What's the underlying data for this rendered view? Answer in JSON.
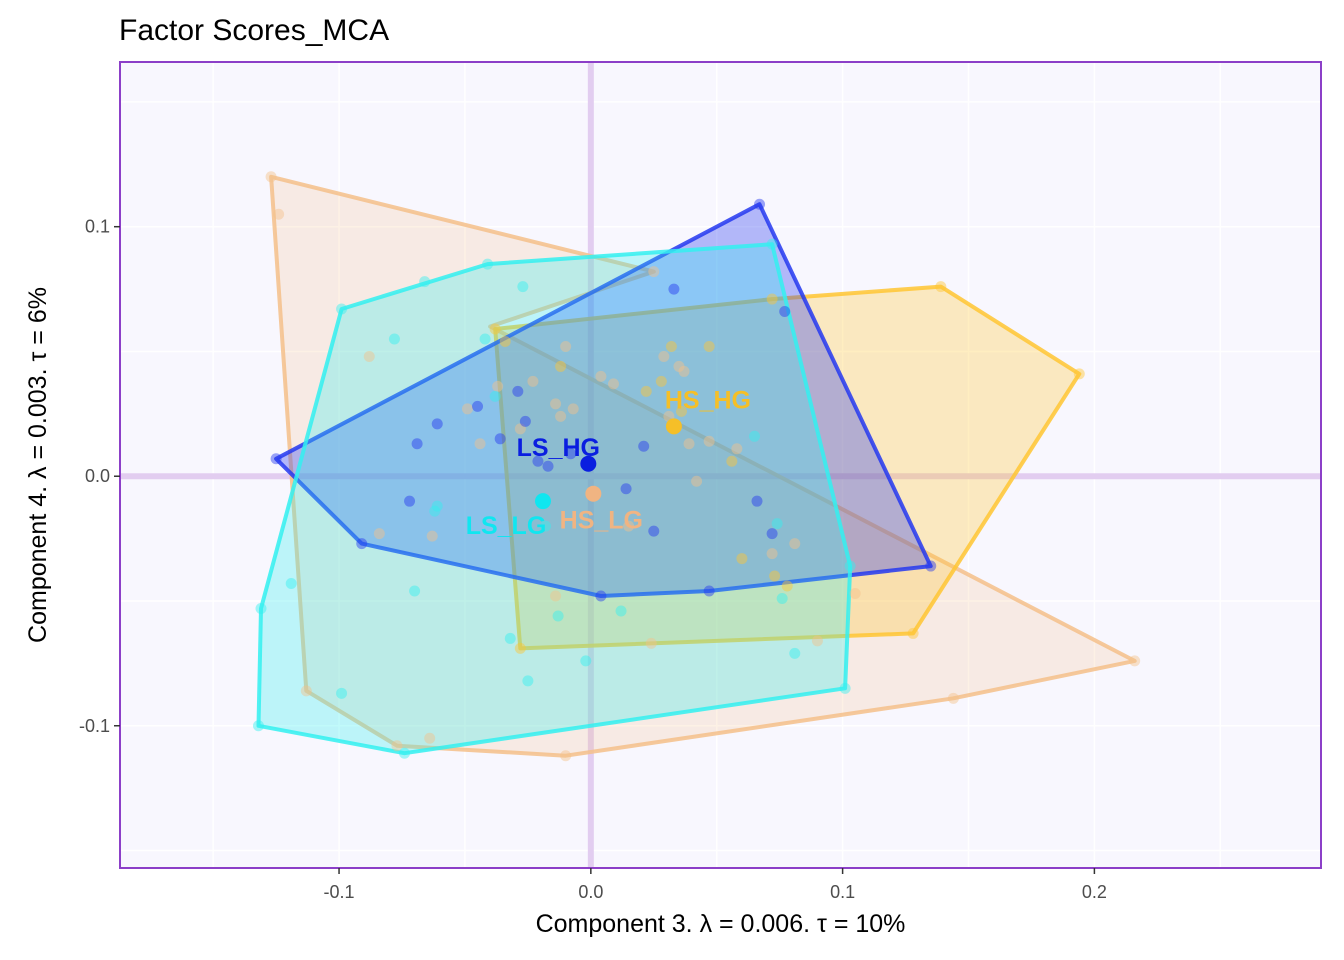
{
  "chart_data": {
    "type": "scatter",
    "title": "Factor Scores_MCA",
    "xlabel": "Component 3.   λ = 0.006.  τ = 10%",
    "ylabel": "Component 4.   λ = 0.003.  τ = 6%",
    "xlim": [
      -0.187,
      0.29
    ],
    "ylim": [
      -0.157,
      0.166
    ],
    "x_ticks": [
      -0.1,
      0.0,
      0.1,
      0.2
    ],
    "y_ticks": [
      -0.1,
      0.0,
      0.1
    ],
    "x_tick_labels": [
      "-0.1",
      "0.0",
      "0.1",
      "0.2"
    ],
    "y_tick_labels": [
      "-0.1",
      "0.0",
      "0.1"
    ],
    "grid": true,
    "background_color": "#f8f7fe",
    "border_color": "#8c3fc8",
    "origin_line_color": "#e2cdf0",
    "series": [
      {
        "name": "HS_LG",
        "color": "#f4c08a",
        "label_color": "#f0b482",
        "hull_fill_opacity": 0.22,
        "mean": [
          0.001,
          -0.007
        ],
        "hull": [
          [
            -0.127,
            0.12
          ],
          [
            -0.113,
            -0.086
          ],
          [
            -0.077,
            -0.108
          ],
          [
            -0.01,
            -0.112
          ],
          [
            0.144,
            -0.089
          ],
          [
            0.216,
            -0.074
          ],
          [
            -0.04,
            0.06
          ],
          [
            0.025,
            0.082
          ]
        ],
        "points": [
          [
            -0.127,
            0.12
          ],
          [
            -0.124,
            0.105
          ],
          [
            -0.113,
            -0.086
          ],
          [
            -0.088,
            0.048
          ],
          [
            -0.084,
            -0.023
          ],
          [
            -0.077,
            -0.108
          ],
          [
            -0.064,
            -0.105
          ],
          [
            -0.063,
            -0.024
          ],
          [
            -0.049,
            0.027
          ],
          [
            -0.044,
            0.013
          ],
          [
            -0.037,
            0.036
          ],
          [
            -0.028,
            0.019
          ],
          [
            -0.023,
            0.038
          ],
          [
            -0.014,
            0.029
          ],
          [
            -0.014,
            -0.048
          ],
          [
            -0.012,
            0.024
          ],
          [
            -0.01,
            -0.112
          ],
          [
            -0.01,
            0.052
          ],
          [
            -0.007,
            0.027
          ],
          [
            0.004,
            0.04
          ],
          [
            0.009,
            0.037
          ],
          [
            0.015,
            -0.02
          ],
          [
            0.025,
            0.082
          ],
          [
            0.024,
            -0.067
          ],
          [
            0.029,
            0.048
          ],
          [
            0.031,
            0.024
          ],
          [
            0.035,
            0.044
          ],
          [
            0.037,
            0.042
          ],
          [
            0.039,
            0.013
          ],
          [
            0.042,
            -0.002
          ],
          [
            0.047,
            0.014
          ],
          [
            0.058,
            0.011
          ],
          [
            0.072,
            -0.031
          ],
          [
            0.081,
            -0.027
          ],
          [
            0.09,
            -0.066
          ],
          [
            0.105,
            -0.047
          ],
          [
            0.144,
            -0.089
          ],
          [
            0.216,
            -0.074
          ]
        ]
      },
      {
        "name": "HS_HG",
        "color": "#ffc633",
        "label_color": "#f5bf28",
        "hull_fill_opacity": 0.3,
        "mean": [
          0.033,
          0.02
        ],
        "hull": [
          [
            -0.038,
            0.059
          ],
          [
            -0.028,
            -0.069
          ],
          [
            0.128,
            -0.063
          ],
          [
            0.194,
            0.041
          ],
          [
            0.139,
            0.076
          ],
          [
            0.072,
            0.071
          ]
        ],
        "points": [
          [
            -0.038,
            0.059
          ],
          [
            -0.034,
            0.054
          ],
          [
            -0.028,
            -0.069
          ],
          [
            -0.012,
            0.044
          ],
          [
            0.022,
            0.034
          ],
          [
            0.028,
            0.038
          ],
          [
            0.032,
            0.052
          ],
          [
            0.036,
            0.026
          ],
          [
            0.047,
            0.052
          ],
          [
            0.056,
            0.006
          ],
          [
            0.06,
            -0.033
          ],
          [
            0.073,
            -0.04
          ],
          [
            0.078,
            -0.044
          ],
          [
            0.128,
            -0.063
          ],
          [
            0.194,
            0.041
          ],
          [
            0.139,
            0.076
          ],
          [
            0.072,
            0.071
          ]
        ]
      },
      {
        "name": "LS_HG",
        "color": "#2438f0",
        "label_color": "#0a1ee0",
        "hull_fill_opacity": 0.33,
        "mean": [
          -0.001,
          0.005
        ],
        "hull": [
          [
            -0.125,
            0.007
          ],
          [
            -0.091,
            -0.027
          ],
          [
            0.004,
            -0.048
          ],
          [
            0.047,
            -0.046
          ],
          [
            0.135,
            -0.036
          ],
          [
            0.067,
            0.109
          ]
        ],
        "points": [
          [
            -0.125,
            0.007
          ],
          [
            -0.091,
            -0.027
          ],
          [
            -0.069,
            0.013
          ],
          [
            -0.072,
            -0.01
          ],
          [
            -0.061,
            0.021
          ],
          [
            -0.045,
            0.028
          ],
          [
            -0.036,
            0.015
          ],
          [
            -0.029,
            0.034
          ],
          [
            -0.026,
            0.022
          ],
          [
            -0.021,
            0.006
          ],
          [
            -0.017,
            0.004
          ],
          [
            -0.008,
            0.009
          ],
          [
            0.004,
            -0.048
          ],
          [
            0.014,
            -0.005
          ],
          [
            0.021,
            0.012
          ],
          [
            0.025,
            -0.022
          ],
          [
            0.033,
            0.075
          ],
          [
            0.047,
            -0.046
          ],
          [
            0.066,
            -0.01
          ],
          [
            0.072,
            -0.023
          ],
          [
            0.077,
            0.066
          ],
          [
            0.135,
            -0.036
          ],
          [
            0.067,
            0.109
          ]
        ]
      },
      {
        "name": "LS_LG",
        "color": "#32f0f0",
        "label_color": "#10e6f0",
        "hull_fill_opacity": 0.3,
        "mean": [
          -0.019,
          -0.01
        ],
        "hull": [
          [
            -0.099,
            0.067
          ],
          [
            -0.131,
            -0.053
          ],
          [
            -0.132,
            -0.1
          ],
          [
            -0.074,
            -0.111
          ],
          [
            0.101,
            -0.085
          ],
          [
            0.103,
            -0.036
          ],
          [
            0.072,
            0.093
          ],
          [
            -0.041,
            0.085
          ]
        ],
        "points": [
          [
            -0.099,
            0.067
          ],
          [
            -0.131,
            -0.053
          ],
          [
            -0.132,
            -0.1
          ],
          [
            -0.119,
            -0.043
          ],
          [
            -0.099,
            -0.087
          ],
          [
            -0.074,
            -0.111
          ],
          [
            -0.078,
            0.055
          ],
          [
            -0.07,
            -0.046
          ],
          [
            -0.066,
            0.078
          ],
          [
            -0.061,
            -0.012
          ],
          [
            -0.062,
            -0.014
          ],
          [
            -0.042,
            0.055
          ],
          [
            -0.038,
            0.032
          ],
          [
            -0.032,
            -0.065
          ],
          [
            -0.027,
            0.076
          ],
          [
            -0.025,
            -0.082
          ],
          [
            -0.018,
            -0.02
          ],
          [
            -0.013,
            -0.056
          ],
          [
            -0.002,
            -0.074
          ],
          [
            0.012,
            -0.054
          ],
          [
            0.065,
            0.016
          ],
          [
            0.072,
            0.093
          ],
          [
            0.074,
            -0.019
          ],
          [
            0.076,
            -0.049
          ],
          [
            0.081,
            -0.071
          ],
          [
            0.101,
            -0.085
          ],
          [
            0.103,
            -0.036
          ],
          [
            -0.041,
            0.085
          ]
        ]
      }
    ]
  }
}
